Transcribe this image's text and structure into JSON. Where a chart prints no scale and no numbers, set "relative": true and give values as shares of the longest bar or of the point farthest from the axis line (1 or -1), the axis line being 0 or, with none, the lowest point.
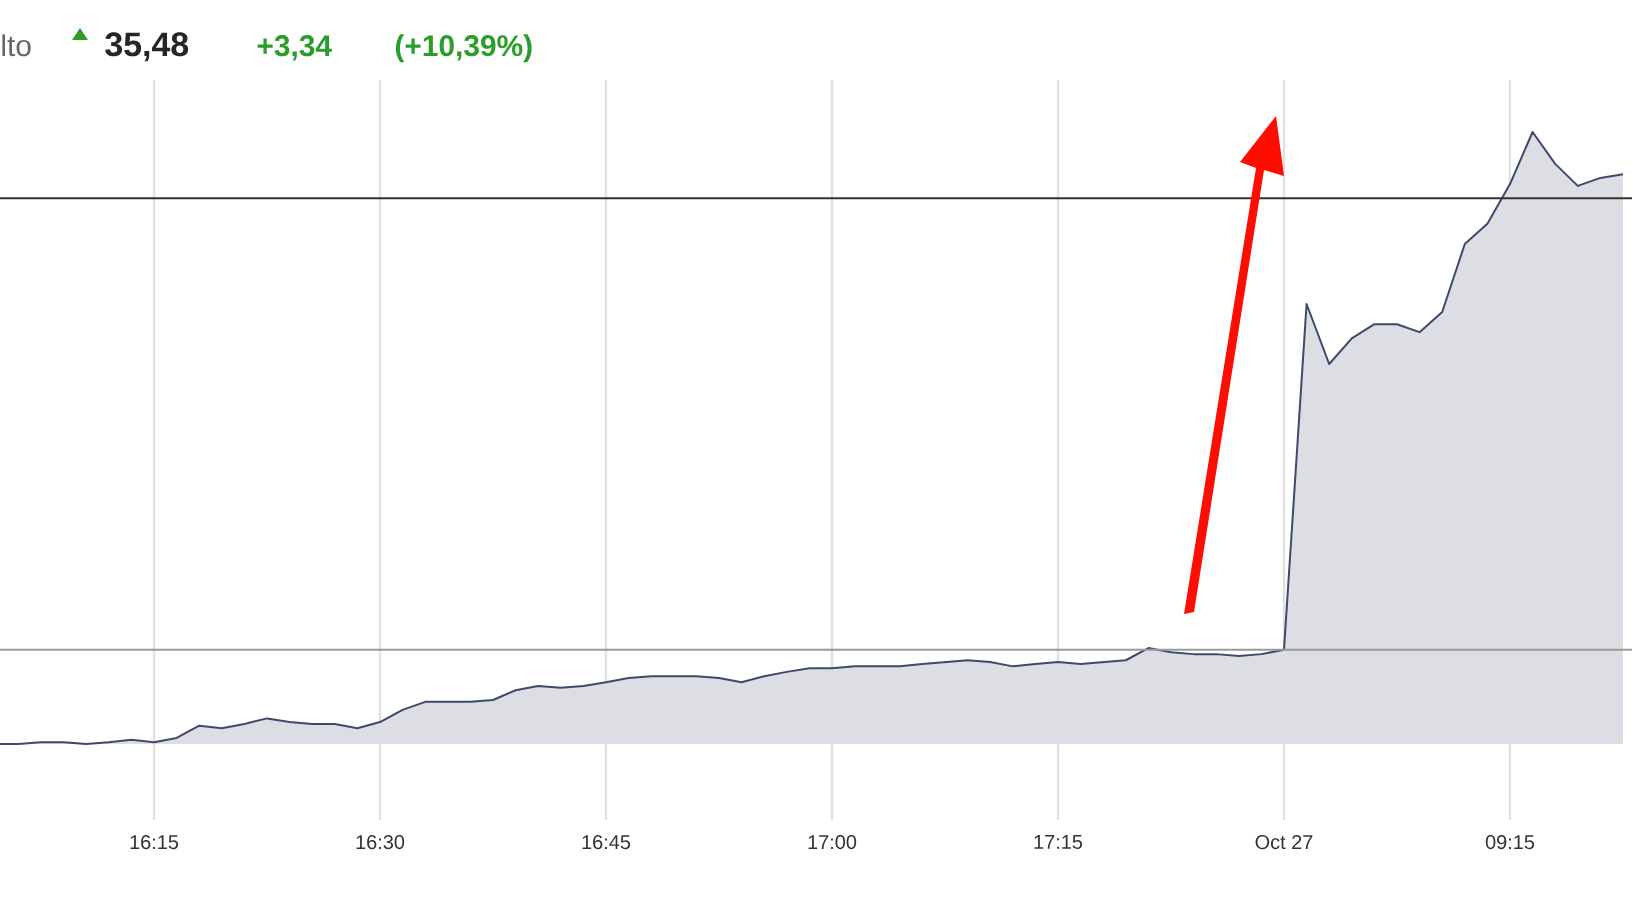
{
  "chart_data": {
    "type": "area",
    "title": "lto",
    "annotations": [
      "35,48",
      "+3,34",
      "(+10,39%)"
    ],
    "relative": true,
    "grid": "x",
    "categories": [
      null,
      null,
      null,
      null,
      null,
      null,
      null,
      "16:15",
      null,
      null,
      null,
      null,
      null,
      null,
      null,
      null,
      null,
      "16:30",
      null,
      null,
      null,
      null,
      null,
      null,
      null,
      null,
      null,
      "16:45",
      null,
      null,
      null,
      null,
      null,
      null,
      null,
      null,
      null,
      "17:00",
      null,
      null,
      null,
      null,
      null,
      null,
      null,
      null,
      null,
      "17:15",
      null,
      null,
      null,
      null,
      null,
      null,
      null,
      null,
      null,
      "Oct 27",
      null,
      null,
      null,
      null,
      null,
      null,
      null,
      null,
      null,
      "09:15",
      null,
      null,
      null,
      null,
      null
    ],
    "series": [
      {
        "color": "#3d4a6b",
        "values": [
          0,
          0,
          0.003,
          0.003,
          0,
          0.003,
          0.007,
          0.003,
          0.01,
          0.03,
          0.026,
          0.033,
          0.042,
          0.036,
          0.033,
          0.033,
          0.026,
          0.036,
          0.056,
          0.069,
          0.069,
          0.069,
          0.072,
          0.088,
          0.095,
          0.092,
          0.095,
          0.101,
          0.108,
          0.111,
          0.111,
          0.111,
          0.108,
          0.101,
          0.111,
          0.118,
          0.124,
          0.124,
          0.127,
          0.127,
          0.127,
          0.131,
          0.134,
          0.137,
          0.134,
          0.127,
          0.131,
          0.134,
          0.131,
          0.134,
          0.137,
          0.157,
          0.15,
          0.147,
          0.147,
          0.144,
          0.147,
          0.154,
          0.719,
          0.621,
          0.663,
          0.686,
          0.686,
          0.673,
          0.706,
          0.817,
          0.85,
          0.915,
          1,
          0.948,
          0.912,
          0.925,
          0.931
        ]
      }
    ],
    "ref_lines": [
      {
        "axis": "y",
        "value": 0.892,
        "color": "#333333"
      },
      {
        "axis": "y",
        "value": 0.154,
        "color": "#9a9a9a"
      }
    ]
  }
}
